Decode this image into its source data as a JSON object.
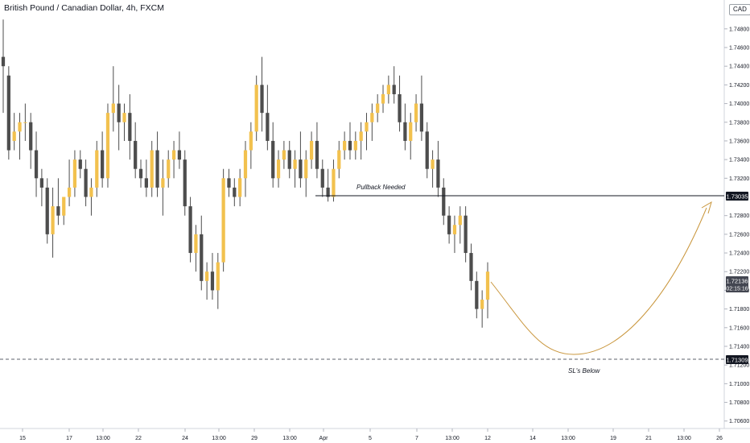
{
  "header": {
    "title": "British Pound / Canadian Dollar, 4h, FXCM",
    "currency": "CAD"
  },
  "annotations": {
    "pullback_label": "Pullback Needed",
    "sl_label": "SL's Below"
  },
  "price_badges": {
    "pullback_level": "1.73035",
    "current_price": "1.72136",
    "countdown": "02:15:16",
    "sl_level": "1.71309"
  },
  "colors": {
    "bull": "#f2c14e",
    "bear": "#4d4d4d",
    "projection": "#c9963c",
    "badge": "#131722",
    "current_badge": "#434651"
  },
  "chart_data": {
    "type": "candlestick",
    "title": "British Pound / Canadian Dollar, 4h, FXCM",
    "ylim": [
      1.7052,
      1.7504
    ],
    "y_ticks": [
      "1.74800",
      "1.74600",
      "1.74400",
      "1.74200",
      "1.74000",
      "1.73800",
      "1.73600",
      "1.73400",
      "1.73200",
      "1.72800",
      "1.72600",
      "1.72400",
      "1.72200",
      "1.72000",
      "1.71800",
      "1.71600",
      "1.71400",
      "1.71200",
      "1.71000",
      "1.70800",
      "1.70600"
    ],
    "x_ticks": [
      "15",
      "17",
      "13:00",
      "22",
      "24",
      "13:00",
      "29",
      "13:00",
      "Apr",
      "5",
      "7",
      "13:00",
      "12",
      "14",
      "13:00",
      "19",
      "21",
      "13:00",
      "26"
    ],
    "grid": false,
    "series": [
      {
        "values": [
          [
            1.745,
            1.749,
            1.739,
            1.744
          ],
          [
            1.743,
            1.744,
            1.734,
            1.735
          ],
          [
            1.736,
            1.739,
            1.735,
            1.737
          ],
          [
            1.737,
            1.739,
            1.734,
            1.738
          ],
          [
            1.738,
            1.74,
            1.736,
            1.738
          ],
          [
            1.738,
            1.739,
            1.733,
            1.735
          ],
          [
            1.735,
            1.737,
            1.73,
            1.732
          ],
          [
            1.732,
            1.733,
            1.729,
            1.731
          ],
          [
            1.731,
            1.732,
            1.725,
            1.726
          ],
          [
            1.726,
            1.731,
            1.7235,
            1.729
          ],
          [
            1.729,
            1.732,
            1.727,
            1.728
          ],
          [
            1.728,
            1.73,
            1.727,
            1.73
          ],
          [
            1.73,
            1.734,
            1.729,
            1.731
          ],
          [
            1.731,
            1.735,
            1.73,
            1.734
          ],
          [
            1.734,
            1.735,
            1.732,
            1.733
          ],
          [
            1.733,
            1.734,
            1.729,
            1.73
          ],
          [
            1.73,
            1.732,
            1.728,
            1.731
          ],
          [
            1.731,
            1.736,
            1.73,
            1.735
          ],
          [
            1.735,
            1.737,
            1.731,
            1.732
          ],
          [
            1.732,
            1.74,
            1.731,
            1.739
          ],
          [
            1.739,
            1.744,
            1.737,
            1.74
          ],
          [
            1.74,
            1.742,
            1.735,
            1.738
          ],
          [
            1.738,
            1.74,
            1.736,
            1.739
          ],
          [
            1.739,
            1.741,
            1.734,
            1.736
          ],
          [
            1.736,
            1.738,
            1.732,
            1.733
          ],
          [
            1.733,
            1.734,
            1.731,
            1.732
          ],
          [
            1.732,
            1.734,
            1.73,
            1.731
          ],
          [
            1.731,
            1.736,
            1.73,
            1.735
          ],
          [
            1.735,
            1.737,
            1.73,
            1.731
          ],
          [
            1.731,
            1.734,
            1.728,
            1.732
          ],
          [
            1.732,
            1.735,
            1.731,
            1.734
          ],
          [
            1.734,
            1.736,
            1.732,
            1.735
          ],
          [
            1.735,
            1.737,
            1.733,
            1.734
          ],
          [
            1.734,
            1.735,
            1.728,
            1.729
          ],
          [
            1.729,
            1.73,
            1.723,
            1.724
          ],
          [
            1.724,
            1.727,
            1.722,
            1.726
          ],
          [
            1.726,
            1.728,
            1.72,
            1.721
          ],
          [
            1.721,
            1.723,
            1.719,
            1.722
          ],
          [
            1.722,
            1.724,
            1.719,
            1.72
          ],
          [
            1.72,
            1.724,
            1.718,
            1.723
          ],
          [
            1.723,
            1.733,
            1.722,
            1.732
          ],
          [
            1.732,
            1.733,
            1.73,
            1.731
          ],
          [
            1.731,
            1.732,
            1.729,
            1.73
          ],
          [
            1.73,
            1.733,
            1.729,
            1.732
          ],
          [
            1.732,
            1.736,
            1.73,
            1.735
          ],
          [
            1.735,
            1.738,
            1.733,
            1.737
          ],
          [
            1.737,
            1.743,
            1.736,
            1.742
          ],
          [
            1.742,
            1.745,
            1.737,
            1.739
          ],
          [
            1.739,
            1.742,
            1.735,
            1.736
          ],
          [
            1.736,
            1.738,
            1.731,
            1.732
          ],
          [
            1.732,
            1.735,
            1.731,
            1.734
          ],
          [
            1.734,
            1.736,
            1.733,
            1.735
          ],
          [
            1.735,
            1.736,
            1.732,
            1.733
          ],
          [
            1.733,
            1.735,
            1.731,
            1.734
          ],
          [
            1.734,
            1.737,
            1.731,
            1.732
          ],
          [
            1.732,
            1.735,
            1.73,
            1.734
          ],
          [
            1.734,
            1.737,
            1.733,
            1.736
          ],
          [
            1.736,
            1.738,
            1.732,
            1.733
          ],
          [
            1.733,
            1.734,
            1.73,
            1.731
          ],
          [
            1.731,
            1.733,
            1.7295,
            1.73
          ],
          [
            1.73,
            1.734,
            1.7295,
            1.733
          ],
          [
            1.733,
            1.736,
            1.732,
            1.735
          ],
          [
            1.735,
            1.737,
            1.734,
            1.736
          ],
          [
            1.736,
            1.738,
            1.734,
            1.735
          ],
          [
            1.735,
            1.737,
            1.734,
            1.736
          ],
          [
            1.736,
            1.738,
            1.734,
            1.737
          ],
          [
            1.737,
            1.739,
            1.735,
            1.738
          ],
          [
            1.738,
            1.74,
            1.736,
            1.739
          ],
          [
            1.739,
            1.741,
            1.738,
            1.74
          ],
          [
            1.74,
            1.742,
            1.739,
            1.741
          ],
          [
            1.741,
            1.743,
            1.74,
            1.742
          ],
          [
            1.742,
            1.744,
            1.74,
            1.741
          ],
          [
            1.741,
            1.743,
            1.737,
            1.738
          ],
          [
            1.738,
            1.74,
            1.735,
            1.736
          ],
          [
            1.736,
            1.739,
            1.734,
            1.738
          ],
          [
            1.738,
            1.741,
            1.737,
            1.74
          ],
          [
            1.74,
            1.743,
            1.736,
            1.737
          ],
          [
            1.737,
            1.738,
            1.732,
            1.733
          ],
          [
            1.733,
            1.735,
            1.731,
            1.734
          ],
          [
            1.734,
            1.736,
            1.73,
            1.731
          ],
          [
            1.731,
            1.732,
            1.727,
            1.728
          ],
          [
            1.728,
            1.729,
            1.725,
            1.726
          ],
          [
            1.726,
            1.728,
            1.724,
            1.727
          ],
          [
            1.727,
            1.729,
            1.725,
            1.728
          ],
          [
            1.728,
            1.729,
            1.723,
            1.724
          ],
          [
            1.724,
            1.725,
            1.72,
            1.721
          ],
          [
            1.721,
            1.722,
            1.717,
            1.718
          ],
          [
            1.718,
            1.72,
            1.716,
            1.719
          ],
          [
            1.719,
            1.723,
            1.717,
            1.722
          ]
        ]
      }
    ]
  }
}
